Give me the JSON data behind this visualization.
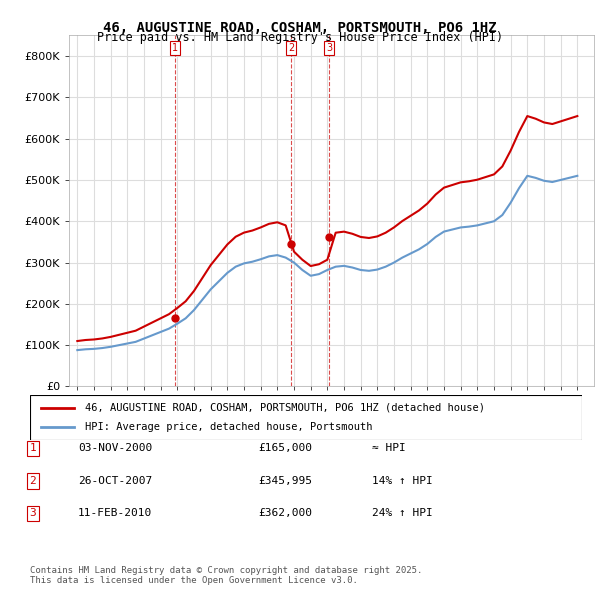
{
  "title": "46, AUGUSTINE ROAD, COSHAM, PORTSMOUTH, PO6 1HZ",
  "subtitle": "Price paid vs. HM Land Registry's House Price Index (HPI)",
  "legend_line1": "46, AUGUSTINE ROAD, COSHAM, PORTSMOUTH, PO6 1HZ (detached house)",
  "legend_line2": "HPI: Average price, detached house, Portsmouth",
  "sale_color": "#cc0000",
  "hpi_color": "#6699cc",
  "vline_color": "#cc0000",
  "transactions": [
    {
      "date_num": 2000.84,
      "price": 165000,
      "label": "1"
    },
    {
      "date_num": 2007.82,
      "price": 345995,
      "label": "2"
    },
    {
      "date_num": 2010.11,
      "price": 362000,
      "label": "3"
    }
  ],
  "table_rows": [
    {
      "num": "1",
      "date": "03-NOV-2000",
      "price": "£165,000",
      "hpi": "≈ HPI"
    },
    {
      "num": "2",
      "date": "26-OCT-2007",
      "price": "£345,995",
      "hpi": "14% ↑ HPI"
    },
    {
      "num": "3",
      "date": "11-FEB-2010",
      "price": "£362,000",
      "hpi": "24% ↑ HPI"
    }
  ],
  "footnote": "Contains HM Land Registry data © Crown copyright and database right 2025.\nThis data is licensed under the Open Government Licence v3.0.",
  "ylim": [
    0,
    850000
  ],
  "yticks": [
    0,
    100000,
    200000,
    300000,
    400000,
    500000,
    600000,
    700000,
    800000
  ],
  "ytick_labels": [
    "£0",
    "£100K",
    "£200K",
    "£300K",
    "£400K",
    "£500K",
    "£600K",
    "£700K",
    "£800K"
  ],
  "xmin": 1994.5,
  "xmax": 2026.0
}
